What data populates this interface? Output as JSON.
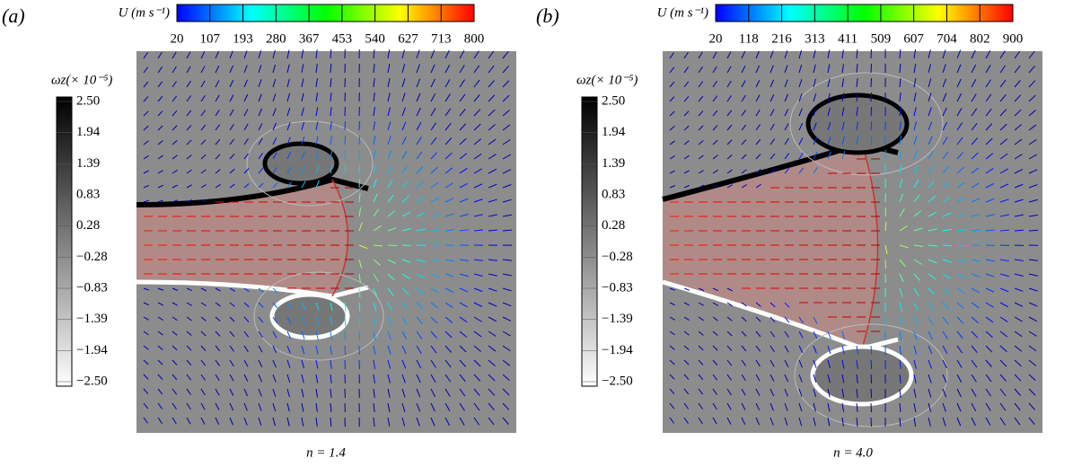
{
  "panels": [
    {
      "label": "(a)",
      "colorbar_u": {
        "title": "U (m s⁻¹)",
        "ticks": [
          "20",
          "107",
          "193",
          "280",
          "367",
          "453",
          "540",
          "627",
          "713",
          "800"
        ]
      },
      "colorbar_omega": {
        "title": "ωz(× 10⁻⁵)",
        "ticks": [
          "2.50",
          "1.94",
          "1.39",
          "0.83",
          "0.28",
          "−0.28",
          "−0.83",
          "−1.39",
          "−1.94",
          "−2.50"
        ]
      },
      "caption": "n = 1.4"
    },
    {
      "label": "(b)",
      "colorbar_u": {
        "title": "U (m s⁻¹)",
        "ticks": [
          "20",
          "118",
          "216",
          "313",
          "411",
          "509",
          "607",
          "704",
          "802",
          "900"
        ]
      },
      "colorbar_omega": {
        "title": "ωz(× 10⁻⁵)",
        "ticks": [
          "2.50",
          "1.94",
          "1.39",
          "0.83",
          "0.28",
          "−0.28",
          "−0.83",
          "−1.39",
          "−1.94",
          "−2.50"
        ]
      },
      "caption": "n = 4.0"
    }
  ]
}
